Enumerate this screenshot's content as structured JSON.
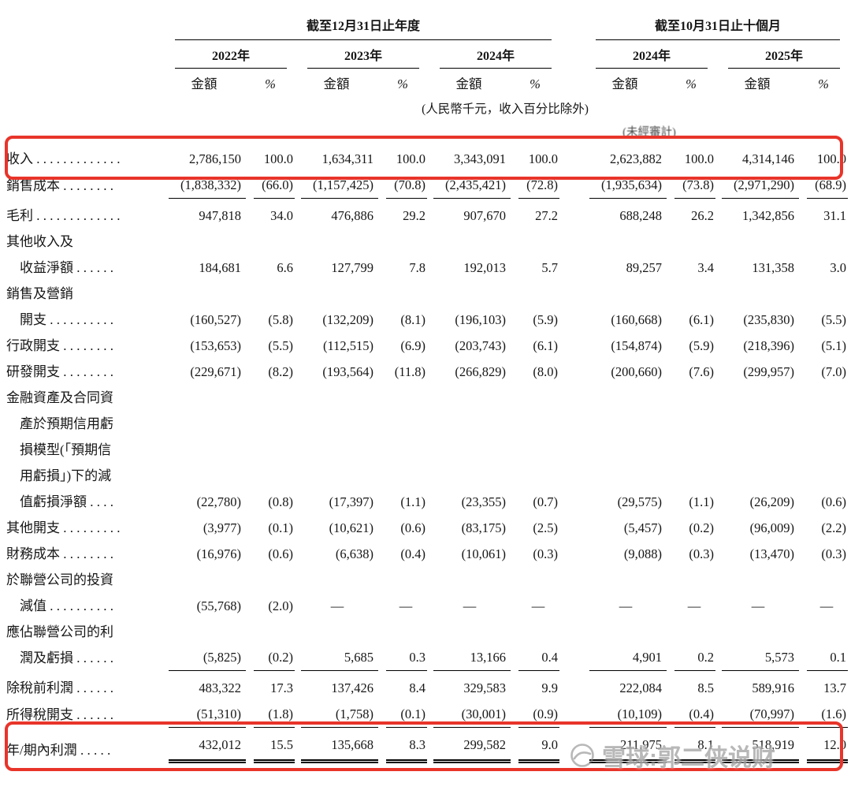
{
  "colors": {
    "highlight": "#e8342a"
  },
  "header": {
    "group_annual": "截至12月31日止年度",
    "group_interim": "截至10月31日止十個月",
    "years": [
      "2022年",
      "2023年",
      "2024年",
      "2024年",
      "2025年"
    ],
    "amount_label": "金額",
    "pct_label": "%",
    "note": "(人民幣千元，收入百分比除外)",
    "unaudited": "(未經審計)"
  },
  "rows": [
    {
      "label_lines": [
        "收入 . . . . . . . . . . . . ."
      ],
      "bold": true,
      "highlight": true,
      "underline": false,
      "dbl": false,
      "values": [
        "2,786,150",
        "100.0",
        "1,634,311",
        "100.0",
        "3,343,091",
        "100.0",
        "2,623,882",
        "100.0",
        "4,314,146",
        "100.0"
      ]
    },
    {
      "label_lines": [
        "銷售成本 . . . . . . . ."
      ],
      "bold": false,
      "highlight": false,
      "underline": true,
      "dbl": false,
      "values": [
        "(1,838,332)",
        "(66.0)",
        "(1,157,425)",
        "(70.8)",
        "(2,435,421)",
        "(72.8)",
        "(1,935,634)",
        "(73.8)",
        "(2,971,290)",
        "(68.9)"
      ]
    },
    {
      "label_lines": [
        "毛利 . . . . . . . . . . . . ."
      ],
      "bold": true,
      "highlight": false,
      "underline": false,
      "dbl": false,
      "values": [
        "947,818",
        "34.0",
        "476,886",
        "29.2",
        "907,670",
        "27.2",
        "688,248",
        "26.2",
        "1,342,856",
        "31.1"
      ]
    },
    {
      "label_lines": [
        "其他收入及",
        "收益淨額 . . . . . ."
      ],
      "bold": false,
      "highlight": false,
      "underline": false,
      "dbl": false,
      "values": [
        "184,681",
        "6.6",
        "127,799",
        "7.8",
        "192,013",
        "5.7",
        "89,257",
        "3.4",
        "131,358",
        "3.0"
      ]
    },
    {
      "label_lines": [
        "銷售及營銷",
        "開支 . . . . . . . . . ."
      ],
      "bold": false,
      "highlight": false,
      "underline": false,
      "dbl": false,
      "values": [
        "(160,527)",
        "(5.8)",
        "(132,209)",
        "(8.1)",
        "(196,103)",
        "(5.9)",
        "(160,668)",
        "(6.1)",
        "(235,830)",
        "(5.5)"
      ]
    },
    {
      "label_lines": [
        "行政開支 . . . . . . . ."
      ],
      "bold": false,
      "highlight": false,
      "underline": false,
      "dbl": false,
      "values": [
        "(153,653)",
        "(5.5)",
        "(112,515)",
        "(6.9)",
        "(203,743)",
        "(6.1)",
        "(154,874)",
        "(5.9)",
        "(218,396)",
        "(5.1)"
      ]
    },
    {
      "label_lines": [
        "研發開支 . . . . . . . ."
      ],
      "bold": false,
      "highlight": false,
      "underline": false,
      "dbl": false,
      "values": [
        "(229,671)",
        "(8.2)",
        "(193,564)",
        "(11.8)",
        "(266,829)",
        "(8.0)",
        "(200,660)",
        "(7.6)",
        "(299,957)",
        "(7.0)"
      ]
    },
    {
      "label_lines": [
        "金融資產及合同資",
        "產於預期信用虧",
        "損模型(「預期信",
        "用虧損」)下的減",
        "值虧損淨額 . . . ."
      ],
      "bold": false,
      "highlight": false,
      "underline": false,
      "dbl": false,
      "values": [
        "(22,780)",
        "(0.8)",
        "(17,397)",
        "(1.1)",
        "(23,355)",
        "(0.7)",
        "(29,575)",
        "(1.1)",
        "(26,209)",
        "(0.6)"
      ]
    },
    {
      "label_lines": [
        "其他開支 . . . . . . . . ."
      ],
      "bold": false,
      "highlight": false,
      "underline": false,
      "dbl": false,
      "values": [
        "(3,977)",
        "(0.1)",
        "(10,621)",
        "(0.6)",
        "(83,175)",
        "(2.5)",
        "(5,457)",
        "(0.2)",
        "(96,009)",
        "(2.2)"
      ]
    },
    {
      "label_lines": [
        "財務成本 . . . . . . . ."
      ],
      "bold": false,
      "highlight": false,
      "underline": false,
      "dbl": false,
      "values": [
        "(16,976)",
        "(0.6)",
        "(6,638)",
        "(0.4)",
        "(10,061)",
        "(0.3)",
        "(9,088)",
        "(0.3)",
        "(13,470)",
        "(0.3)"
      ]
    },
    {
      "label_lines": [
        "於聯營公司的投資",
        "減值 . . . . . . . . . ."
      ],
      "bold": false,
      "highlight": false,
      "underline": false,
      "dbl": false,
      "values": [
        "(55,768)",
        "(2.0)",
        "—",
        "—",
        "—",
        "—",
        "—",
        "—",
        "—",
        "—"
      ]
    },
    {
      "label_lines": [
        "應佔聯營公司的利",
        "潤及虧損 . . . . . ."
      ],
      "bold": false,
      "highlight": false,
      "underline": true,
      "dbl": false,
      "values": [
        "(5,825)",
        "(0.2)",
        "5,685",
        "0.3",
        "13,166",
        "0.4",
        "4,901",
        "0.2",
        "5,573",
        "0.1"
      ]
    },
    {
      "label_lines": [
        "除稅前利潤 . . . . . ."
      ],
      "bold": true,
      "highlight": false,
      "underline": false,
      "dbl": false,
      "values": [
        "483,322",
        "17.3",
        "137,426",
        "8.4",
        "329,583",
        "9.9",
        "222,084",
        "8.5",
        "589,916",
        "13.7"
      ]
    },
    {
      "label_lines": [
        "所得稅開支 . . . . . ."
      ],
      "bold": false,
      "highlight": false,
      "underline": true,
      "dbl": false,
      "values": [
        "(51,310)",
        "(1.8)",
        "(1,758)",
        "(0.1)",
        "(30,001)",
        "(0.9)",
        "(10,109)",
        "(0.4)",
        "(70,997)",
        "(1.6)"
      ]
    },
    {
      "label_lines": [
        "年/期內利潤 . . . . ."
      ],
      "bold": true,
      "highlight": true,
      "underline": false,
      "dbl": true,
      "values": [
        "432,012",
        "15.5",
        "135,668",
        "8.3",
        "299,582",
        "9.0",
        "211,975",
        "8.1",
        "518,919",
        "12.0"
      ]
    }
  ],
  "watermark": {
    "text": "雪球:郭二侠说财"
  }
}
